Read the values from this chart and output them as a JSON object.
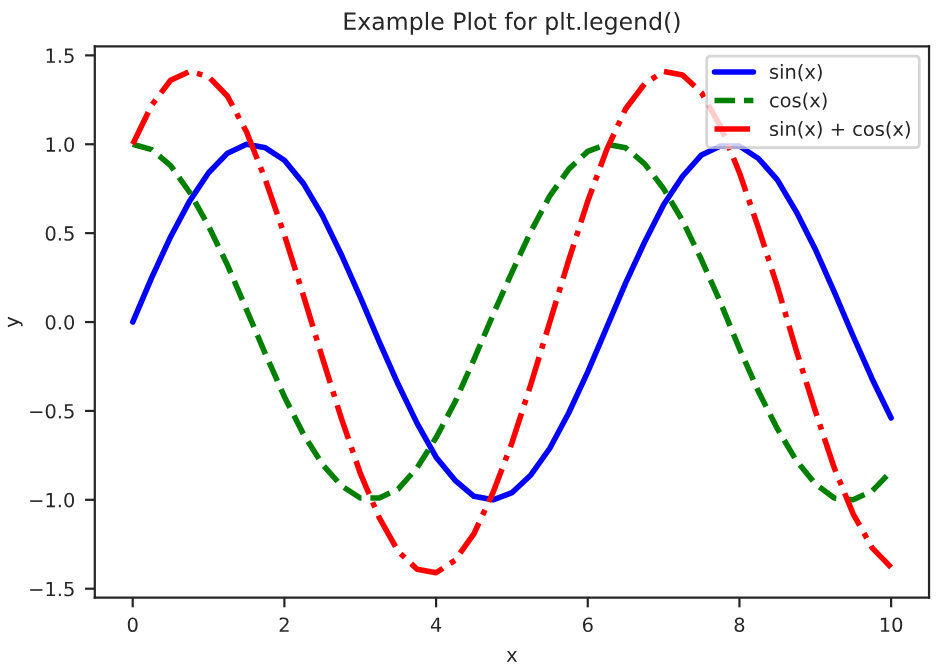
{
  "chart_data": {
    "type": "line",
    "title": "Example Plot for plt.legend()",
    "xlabel": "x",
    "ylabel": "y",
    "x": [
      0,
      0.25,
      0.5,
      0.75,
      1,
      1.25,
      1.5,
      1.75,
      2,
      2.25,
      2.5,
      2.75,
      3,
      3.25,
      3.5,
      3.75,
      4,
      4.25,
      4.5,
      4.75,
      5,
      5.25,
      5.5,
      5.75,
      6,
      6.25,
      6.5,
      6.75,
      7,
      7.25,
      7.5,
      7.75,
      8,
      8.25,
      8.5,
      8.75,
      9,
      9.25,
      9.5,
      9.75,
      10
    ],
    "series": [
      {
        "name": "sin(x)",
        "color": "#0000ff",
        "line_style": "solid",
        "values": [
          0,
          0.25,
          0.48,
          0.68,
          0.84,
          0.95,
          1.0,
          0.98,
          0.91,
          0.78,
          0.6,
          0.38,
          0.14,
          -0.11,
          -0.35,
          -0.57,
          -0.76,
          -0.89,
          -0.98,
          -1.0,
          -0.96,
          -0.86,
          -0.71,
          -0.51,
          -0.28,
          -0.03,
          0.22,
          0.45,
          0.66,
          0.82,
          0.94,
          0.99,
          0.99,
          0.92,
          0.8,
          0.62,
          0.41,
          0.17,
          -0.08,
          -0.32,
          -0.54
        ]
      },
      {
        "name": "cos(x)",
        "color": "#008000",
        "line_style": "dashed",
        "values": [
          1,
          0.97,
          0.88,
          0.73,
          0.54,
          0.32,
          0.07,
          -0.18,
          -0.42,
          -0.63,
          -0.8,
          -0.92,
          -0.99,
          -0.99,
          -0.94,
          -0.82,
          -0.65,
          -0.45,
          -0.21,
          0.04,
          0.28,
          0.51,
          0.71,
          0.86,
          0.96,
          1.0,
          0.98,
          0.89,
          0.75,
          0.57,
          0.35,
          0.11,
          -0.15,
          -0.39,
          -0.6,
          -0.78,
          -0.91,
          -0.99,
          -1.0,
          -0.95,
          -0.84
        ]
      },
      {
        "name": "sin(x) + cos(x)",
        "color": "#ff0000",
        "line_style": "dashdot",
        "values": [
          1,
          1.22,
          1.36,
          1.41,
          1.38,
          1.27,
          1.07,
          0.8,
          0.49,
          0.15,
          -0.2,
          -0.54,
          -0.85,
          -1.1,
          -1.29,
          -1.39,
          -1.41,
          -1.34,
          -1.19,
          -0.96,
          -0.68,
          -0.35,
          0.0,
          0.35,
          0.68,
          0.97,
          1.2,
          1.34,
          1.41,
          1.39,
          1.29,
          1.1,
          0.84,
          0.53,
          0.2,
          -0.16,
          -0.5,
          -0.82,
          -1.08,
          -1.27,
          -1.38
        ]
      }
    ],
    "xlim": [
      -0.5,
      10.5
    ],
    "ylim": [
      -1.55,
      1.55
    ],
    "xticks": [
      0,
      2,
      4,
      6,
      8,
      10
    ],
    "yticks": [
      {
        "value": -1.5,
        "label": "−1.5"
      },
      {
        "value": -1.0,
        "label": "−1.0"
      },
      {
        "value": -0.5,
        "label": "−0.5"
      },
      {
        "value": 0,
        "label": "0.0"
      },
      {
        "value": 0.5,
        "label": "0.5"
      },
      {
        "value": 1.0,
        "label": "1.0"
      },
      {
        "value": 1.5,
        "label": "1.5"
      }
    ],
    "legend": "top right",
    "grid": false
  }
}
